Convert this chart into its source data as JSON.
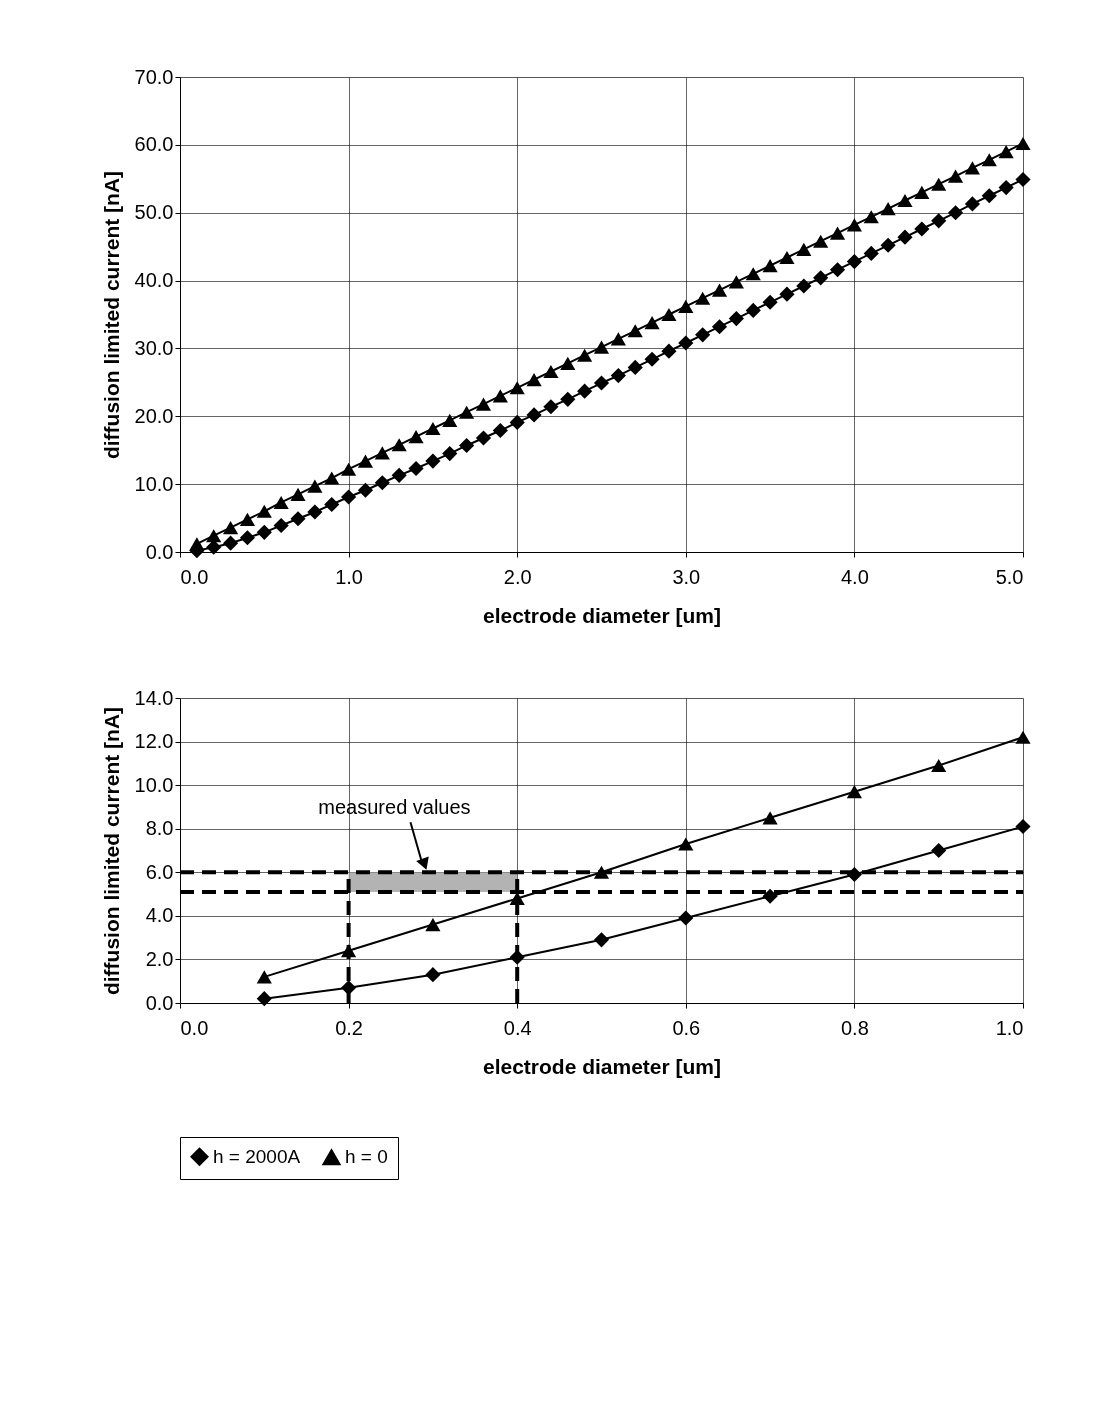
{
  "chart_data": [
    {
      "type": "line",
      "xlabel": "electrode diameter [um]",
      "ylabel": "diffusion limited current [nA]",
      "x": [
        0.1,
        0.2,
        0.3,
        0.4,
        0.5,
        0.6,
        0.7,
        0.8,
        0.9,
        1.0,
        1.1,
        1.2,
        1.3,
        1.4,
        1.5,
        1.6,
        1.7,
        1.8,
        1.9,
        2.0,
        2.1,
        2.2,
        2.3,
        2.4,
        2.5,
        2.6,
        2.7,
        2.8,
        2.9,
        3.0,
        3.1,
        3.2,
        3.3,
        3.4,
        3.5,
        3.6,
        3.7,
        3.8,
        3.9,
        4.0,
        4.1,
        4.2,
        4.3,
        4.4,
        4.5,
        4.6,
        4.7,
        4.8,
        4.9,
        5.0
      ],
      "series": [
        {
          "color": "#000000",
          "marker": "diamond",
          "values": [
            0.2,
            0.7,
            1.3,
            2.1,
            2.9,
            3.9,
            4.9,
            5.9,
            7.0,
            8.1,
            9.1,
            10.2,
            11.3,
            12.3,
            13.4,
            14.5,
            15.7,
            16.8,
            17.9,
            19.1,
            20.2,
            21.4,
            22.5,
            23.7,
            24.9,
            26.0,
            27.2,
            28.4,
            29.6,
            30.8,
            32.0,
            33.2,
            34.4,
            35.6,
            36.8,
            38.0,
            39.2,
            40.4,
            41.6,
            42.8,
            44.0,
            45.2,
            46.4,
            47.6,
            48.8,
            50.0,
            51.3,
            52.5,
            53.7,
            54.9
          ]
        },
        {
          "color": "#000000",
          "marker": "triangle",
          "values": [
            1.2,
            2.4,
            3.6,
            4.8,
            6.0,
            7.3,
            8.5,
            9.7,
            10.9,
            12.2,
            13.4,
            14.6,
            15.8,
            17.0,
            18.2,
            19.4,
            20.6,
            21.8,
            23.0,
            24.2,
            25.4,
            26.6,
            27.8,
            29.0,
            30.2,
            31.4,
            32.6,
            33.8,
            35.0,
            36.2,
            37.4,
            38.6,
            39.8,
            41.0,
            42.2,
            43.4,
            44.6,
            45.8,
            47.0,
            48.2,
            49.4,
            50.6,
            51.8,
            53.0,
            54.2,
            55.4,
            56.6,
            57.8,
            59.0,
            60.2
          ]
        }
      ],
      "xlim": [
        0,
        5
      ],
      "xticks": [
        {
          "value": 0,
          "label": "0.0"
        },
        {
          "value": 1,
          "label": "1.0"
        },
        {
          "value": 2,
          "label": "2.0"
        },
        {
          "value": 3,
          "label": "3.0"
        },
        {
          "value": 4,
          "label": "4.0"
        },
        {
          "value": 5,
          "label": "5.0"
        }
      ],
      "ylim": [
        0,
        70
      ],
      "yticks": [
        {
          "value": 0,
          "label": "0.0"
        },
        {
          "value": 10,
          "label": "10.0"
        },
        {
          "value": 20,
          "label": "20.0"
        },
        {
          "value": 30,
          "label": "30.0"
        },
        {
          "value": 40,
          "label": "40.0"
        },
        {
          "value": 50,
          "label": "50.0"
        },
        {
          "value": 60,
          "label": "60.0"
        },
        {
          "value": 70,
          "label": "70.0"
        }
      ],
      "grid": true
    },
    {
      "type": "line",
      "xlabel": "electrode diameter [um]",
      "ylabel": "diffusion limited current [nA]",
      "x": [
        0.1,
        0.2,
        0.3,
        0.4,
        0.5,
        0.6,
        0.7,
        0.8,
        0.9,
        1.0
      ],
      "series": [
        {
          "name": "h = 2000A",
          "color": "#000000",
          "marker": "diamond",
          "values": [
            0.2,
            0.7,
            1.3,
            2.1,
            2.9,
            3.9,
            4.9,
            5.9,
            7.0,
            8.1
          ]
        },
        {
          "name": "h = 0",
          "color": "#000000",
          "marker": "triangle",
          "values": [
            1.2,
            2.4,
            3.6,
            4.8,
            6.0,
            7.3,
            8.5,
            9.7,
            10.9,
            12.2
          ]
        }
      ],
      "xlim": [
        0,
        1
      ],
      "xticks": [
        {
          "value": 0,
          "label": "0.0"
        },
        {
          "value": 0.2,
          "label": "0.2"
        },
        {
          "value": 0.4,
          "label": "0.4"
        },
        {
          "value": 0.6,
          "label": "0.6"
        },
        {
          "value": 0.8,
          "label": "0.8"
        },
        {
          "value": 1,
          "label": "1.0"
        }
      ],
      "ylim": [
        0,
        14
      ],
      "yticks": [
        {
          "value": 0,
          "label": "0.0"
        },
        {
          "value": 2,
          "label": "2.0"
        },
        {
          "value": 4,
          "label": "4.0"
        },
        {
          "value": 6,
          "label": "6.0"
        },
        {
          "value": 8,
          "label": "8.0"
        },
        {
          "value": 10,
          "label": "10.0"
        },
        {
          "value": 12,
          "label": "12.0"
        },
        {
          "value": 14,
          "label": "14.0"
        }
      ],
      "ref_lines": [
        {
          "axis": "y",
          "value": 6.0,
          "line_style": "dashed"
        },
        {
          "axis": "y",
          "value": 5.1,
          "line_style": "dashed"
        },
        {
          "axis": "x",
          "value": 0.2,
          "line_style": "dashed"
        },
        {
          "axis": "x",
          "value": 0.4,
          "line_style": "dashed"
        }
      ],
      "bands": [
        {
          "axis": "x",
          "from": 0.2,
          "to": 0.4,
          "color": "#a0a0a0"
        }
      ],
      "annotations": [
        {
          "text": "measured values",
          "x": 0.29,
          "y": 6.0
        }
      ],
      "grid": true,
      "legend": "bottom"
    }
  ]
}
